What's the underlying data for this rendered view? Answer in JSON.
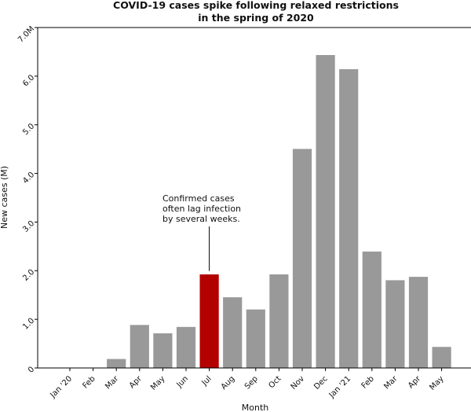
{
  "chart_data": {
    "type": "bar",
    "title_lines": [
      "COVID-19 cases spike following relaxed restrictions",
      "in the spring of 2020"
    ],
    "xlabel": "Month",
    "ylabel": "New cases (M)",
    "categories": [
      "Jan '20",
      "Feb",
      "Mar",
      "Apr",
      "May",
      "Jun",
      "Jul",
      "Aug",
      "Sep",
      "Oct",
      "Nov",
      "Dec",
      "Jan '21",
      "Feb",
      "Mar",
      "Apr",
      "May"
    ],
    "values": [
      0.01,
      0.01,
      0.19,
      0.89,
      0.72,
      0.85,
      1.93,
      1.46,
      1.21,
      1.93,
      4.51,
      6.44,
      6.15,
      2.4,
      1.81,
      1.88,
      0.44
    ],
    "highlight_index": 6,
    "ylim": [
      0,
      7.0
    ],
    "yticks": [
      0,
      1.0,
      2.0,
      3.0,
      4.0,
      5.0,
      6.0,
      7.0
    ],
    "ytick_labels": [
      "0",
      "1.0",
      "2.0",
      "3.0",
      "4.0",
      "5.0",
      "6.0",
      "7.0M"
    ],
    "annotation": {
      "lines": [
        "Confirmed cases",
        "often lag infection",
        "by several weeks."
      ],
      "target_index": 6
    },
    "colors": {
      "bar": "#999999",
      "highlight": "#b30000",
      "bar_edge": "#ffffff"
    },
    "grid": false
  }
}
